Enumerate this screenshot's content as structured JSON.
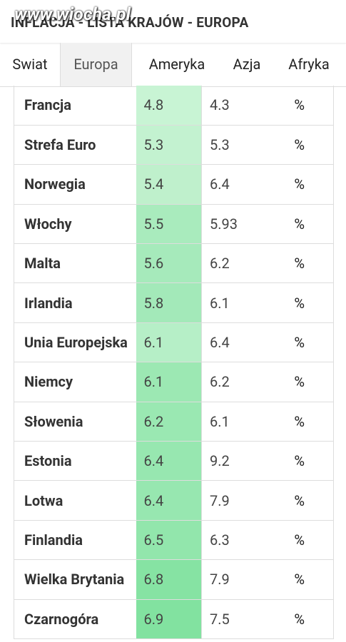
{
  "header": {
    "title": "INFLACJA - LISTA KRAJÓW - EUROPA",
    "watermark": "www.wiocha.pl"
  },
  "tabs": {
    "items": [
      "Swiat",
      "Europa",
      "Ameryka",
      "Azja",
      "Afryka"
    ],
    "selected": "Europa"
  },
  "table": {
    "rows": [
      [
        "Francja",
        "4.8",
        "4.3",
        "%"
      ],
      [
        "Strefa Euro",
        "5.3",
        "5.3",
        "%"
      ],
      [
        "Norwegia",
        "5.4",
        "6.4",
        "%"
      ],
      [
        "Włochy",
        "5.5",
        "5.93",
        "%"
      ],
      [
        "Malta",
        "5.6",
        "6.2",
        "%"
      ],
      [
        "Irlandia",
        "5.8",
        "6.1",
        "%"
      ],
      [
        "Unia Europejska",
        "6.1",
        "6.4",
        "%"
      ],
      [
        "Niemcy",
        "6.1",
        "6.2",
        "%"
      ],
      [
        "Słowenia",
        "6.2",
        "6.1",
        "%"
      ],
      [
        "Estonia",
        "6.4",
        "9.2",
        "%"
      ],
      [
        "Lotwa",
        "6.4",
        "7.9",
        "%"
      ],
      [
        "Finlandia",
        "6.5",
        "6.3",
        "%"
      ],
      [
        "Wielka Brytania",
        "6.8",
        "7.9",
        "%"
      ],
      [
        "Czarnogóra",
        "6.9",
        "7.5",
        "%"
      ]
    ],
    "cell_colors": [
      "#c8f4d4",
      "#c3f2d0",
      "#bff0cc",
      "#a9ebbd",
      "#a6eabb",
      "#a3e9b9",
      "#b6efc7",
      "#9ce8b3",
      "#9ae8b2",
      "#97e7b0",
      "#97e7b0",
      "#92e6ac",
      "#86e3a3",
      "#82e2a0"
    ]
  }
}
